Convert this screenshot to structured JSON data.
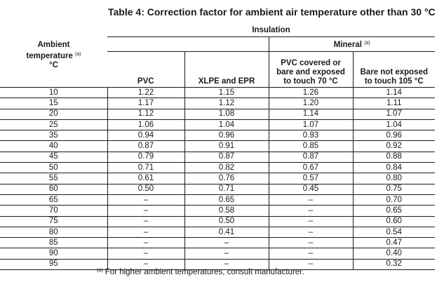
{
  "title": "Table 4: Correction factor for ambient air temperature other than 30 °C",
  "headers": {
    "insulation": "Insulation",
    "mineral": "Mineral",
    "mineral_note": "(a)",
    "ambient_line1": "Ambient",
    "ambient_line2": "temperature",
    "ambient_note": "(a)",
    "ambient_unit": "°C",
    "pvc": "PVC",
    "xlpe": "XLPE and EPR",
    "pvc_covered_line1": "PVC covered or",
    "pvc_covered_line2": "bare and exposed",
    "pvc_covered_line3": "to touch 70 °C",
    "bare_line1": "Bare not exposed",
    "bare_line2": "to touch 105 °C"
  },
  "rows": [
    {
      "temp": "10",
      "pvc": "1.22",
      "xlpe": "1.15",
      "pvc_covered": "1.26",
      "bare": "1.14"
    },
    {
      "temp": "15",
      "pvc": "1.17",
      "xlpe": "1.12",
      "pvc_covered": "1.20",
      "bare": "1.11"
    },
    {
      "temp": "20",
      "pvc": "1.12",
      "xlpe": "1.08",
      "pvc_covered": "1.14",
      "bare": "1.07"
    },
    {
      "temp": "25",
      "pvc": "1.06",
      "xlpe": "1.04",
      "pvc_covered": "1.07",
      "bare": "1.04"
    },
    {
      "temp": "35",
      "pvc": "0.94",
      "xlpe": "0.96",
      "pvc_covered": "0.93",
      "bare": "0.96"
    },
    {
      "temp": "40",
      "pvc": "0.87",
      "xlpe": "0.91",
      "pvc_covered": "0.85",
      "bare": "0.92"
    },
    {
      "temp": "45",
      "pvc": "0.79",
      "xlpe": "0.87",
      "pvc_covered": "0.87",
      "bare": "0.88"
    },
    {
      "temp": "50",
      "pvc": "0.71",
      "xlpe": "0.82",
      "pvc_covered": "0.67",
      "bare": "0.84"
    },
    {
      "temp": "55",
      "pvc": "0.61",
      "xlpe": "0.76",
      "pvc_covered": "0.57",
      "bare": "0.80"
    },
    {
      "temp": "60",
      "pvc": "0.50",
      "xlpe": "0.71",
      "pvc_covered": "0.45",
      "bare": "0.75"
    },
    {
      "temp": "65",
      "pvc": "–",
      "xlpe": "0.65",
      "pvc_covered": "–",
      "bare": "0.70"
    },
    {
      "temp": "70",
      "pvc": "–",
      "xlpe": "0.58",
      "pvc_covered": "–",
      "bare": "0.65"
    },
    {
      "temp": "75",
      "pvc": "–",
      "xlpe": "0.50",
      "pvc_covered": "–",
      "bare": "0.60"
    },
    {
      "temp": "80",
      "pvc": "–",
      "xlpe": "0.41",
      "pvc_covered": "–",
      "bare": "0.54"
    },
    {
      "temp": "85",
      "pvc": "–",
      "xlpe": "–",
      "pvc_covered": "–",
      "bare": "0.47"
    },
    {
      "temp": "90",
      "pvc": "–",
      "xlpe": "–",
      "pvc_covered": "–",
      "bare": "0.40"
    },
    {
      "temp": "95",
      "pvc": "–",
      "xlpe": "–",
      "pvc_covered": "–",
      "bare": "0.32"
    }
  ],
  "footnote": {
    "marker": "(a)",
    "text": "For higher ambient temperatures, consult manufacturer."
  }
}
